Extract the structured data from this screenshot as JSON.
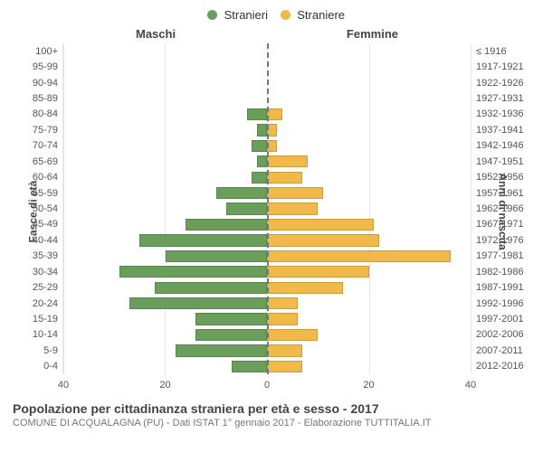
{
  "legend": {
    "items": [
      {
        "label": "Stranieri",
        "color": "#6a9e5b"
      },
      {
        "label": "Straniere",
        "color": "#f0b94a"
      }
    ]
  },
  "chart": {
    "type": "population-pyramid",
    "headers": {
      "left": "Maschi",
      "right": "Femmine"
    },
    "axis_titles": {
      "left": "Fasce di età",
      "right": "Anni di nascita"
    },
    "xaxis": {
      "max": 40,
      "ticks": [
        0,
        20,
        40
      ]
    },
    "grid_color": "#e5e5e5",
    "center_line_color": "#777777",
    "background": "#ffffff",
    "bar_colors": {
      "male": "#6a9e5b",
      "female": "#f0b94a"
    },
    "rows": [
      {
        "age": "100+",
        "birth": "≤ 1916",
        "male": 0,
        "female": 0
      },
      {
        "age": "95-99",
        "birth": "1917-1921",
        "male": 0,
        "female": 0
      },
      {
        "age": "90-94",
        "birth": "1922-1926",
        "male": 0,
        "female": 0
      },
      {
        "age": "85-89",
        "birth": "1927-1931",
        "male": 0,
        "female": 0
      },
      {
        "age": "80-84",
        "birth": "1932-1936",
        "male": 4,
        "female": 3
      },
      {
        "age": "75-79",
        "birth": "1937-1941",
        "male": 2,
        "female": 2
      },
      {
        "age": "70-74",
        "birth": "1942-1946",
        "male": 3,
        "female": 2
      },
      {
        "age": "65-69",
        "birth": "1947-1951",
        "male": 2,
        "female": 8
      },
      {
        "age": "60-64",
        "birth": "1952-1956",
        "male": 3,
        "female": 7
      },
      {
        "age": "55-59",
        "birth": "1957-1961",
        "male": 10,
        "female": 11
      },
      {
        "age": "50-54",
        "birth": "1962-1966",
        "male": 8,
        "female": 10
      },
      {
        "age": "45-49",
        "birth": "1967-1971",
        "male": 16,
        "female": 21
      },
      {
        "age": "40-44",
        "birth": "1972-1976",
        "male": 25,
        "female": 22
      },
      {
        "age": "35-39",
        "birth": "1977-1981",
        "male": 20,
        "female": 36
      },
      {
        "age": "30-34",
        "birth": "1982-1986",
        "male": 29,
        "female": 20
      },
      {
        "age": "25-29",
        "birth": "1987-1991",
        "male": 22,
        "female": 15
      },
      {
        "age": "20-24",
        "birth": "1992-1996",
        "male": 27,
        "female": 6
      },
      {
        "age": "15-19",
        "birth": "1997-2001",
        "male": 14,
        "female": 6
      },
      {
        "age": "10-14",
        "birth": "2002-2006",
        "male": 14,
        "female": 10
      },
      {
        "age": "5-9",
        "birth": "2007-2011",
        "male": 18,
        "female": 7
      },
      {
        "age": "0-4",
        "birth": "2012-2016",
        "male": 7,
        "female": 7
      }
    ]
  },
  "footer": {
    "title": "Popolazione per cittadinanza straniera per età e sesso - 2017",
    "subtitle": "COMUNE DI ACQUALAGNA (PU) - Dati ISTAT 1° gennaio 2017 - Elaborazione TUTTITALIA.IT"
  }
}
